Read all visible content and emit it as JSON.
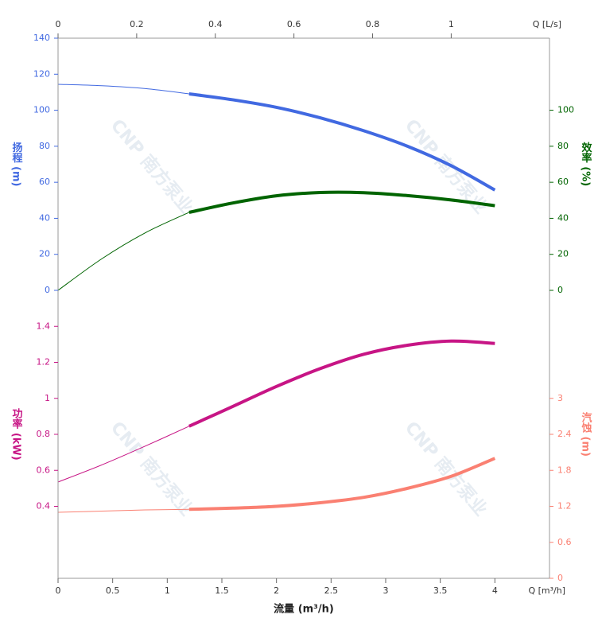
{
  "watermark": "CNP 南方泵业",
  "chart_data": [
    {
      "type": "line",
      "x2lim": [
        0,
        1.25
      ],
      "x2ticks": [
        0,
        0.2,
        0.4,
        0.6,
        0.8,
        1
      ],
      "x2label": "Q [L/s]",
      "xlim": [
        0,
        4.5
      ],
      "ylim": [
        0,
        140
      ],
      "yticks": [
        0,
        20,
        40,
        60,
        80,
        100,
        120,
        140
      ],
      "ylabel": "扬程 (m)",
      "ycolor": "#4169e1",
      "y2lim": [
        0,
        140
      ],
      "y2ticks": [
        0,
        20,
        40,
        60,
        80,
        100
      ],
      "y2label": "效率 (%)",
      "y2color": "#006400",
      "grid": true,
      "highlight_range": [
        1.2,
        4
      ],
      "x": [
        0,
        0.4,
        0.8,
        1.2,
        1.6,
        2.0,
        2.4,
        2.8,
        3.2,
        3.6,
        4.0
      ],
      "series": [
        {
          "color": "#4169e1",
          "axis": "y",
          "values": [
            114.4,
            113.6,
            112,
            109.1,
            105.8,
            101.6,
            95.8,
            88.6,
            80,
            69.2,
            55.7
          ]
        },
        {
          "color": "#006400",
          "axis": "y2",
          "values": [
            0,
            17.5,
            32,
            43.3,
            48.5,
            52.5,
            54.3,
            54.2,
            52.6,
            50.2,
            47
          ]
        }
      ]
    },
    {
      "type": "line",
      "xlim": [
        0,
        4.5
      ],
      "xticks": [
        0,
        0.5,
        1,
        1.5,
        2,
        2.5,
        3,
        3.5,
        4
      ],
      "xunit": "Q [m³/h]",
      "xlabel": "流量 (m³/h)",
      "ylim": [
        0,
        1.6
      ],
      "yticks": [
        0.4,
        0.6,
        0.8,
        1,
        1.2,
        1.4
      ],
      "ylabel": "功率 (kW)",
      "ycolor": "#c71585",
      "y2lim": [
        0,
        4.8
      ],
      "y2ticks": [
        0,
        0.6,
        1.2,
        1.8,
        2.4,
        3
      ],
      "y2label": "汽蚀 (m)",
      "y2color": "#fa8072",
      "grid": true,
      "highlight_range": [
        1.2,
        4
      ],
      "x": [
        0,
        0.4,
        0.8,
        1.2,
        1.6,
        2.0,
        2.4,
        2.8,
        3.2,
        3.6,
        4.0
      ],
      "series": [
        {
          "color": "#c71585",
          "axis": "y",
          "values": [
            0.535,
            0.63,
            0.735,
            0.845,
            0.955,
            1.066,
            1.165,
            1.245,
            1.295,
            1.318,
            1.305
          ]
        },
        {
          "color": "#fa8072",
          "axis": "y2",
          "values": [
            1.1,
            1.12,
            1.14,
            1.15,
            1.17,
            1.2,
            1.26,
            1.35,
            1.5,
            1.7,
            2.0
          ]
        }
      ]
    }
  ]
}
